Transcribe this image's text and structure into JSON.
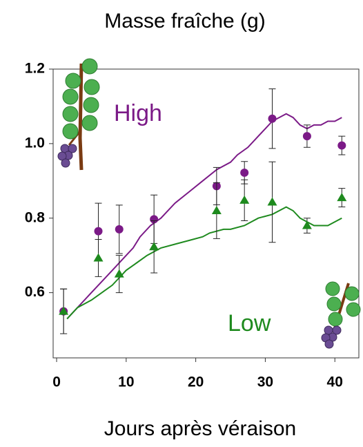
{
  "chart_data": {
    "type": "line",
    "title": "Masse fraîche (g)",
    "x_label": "Jours après véraison",
    "xlim": [
      -0.5,
      43.45
    ],
    "xticks": [
      0,
      10,
      20,
      30,
      40
    ],
    "ylim": [
      0.425,
      1.2
    ],
    "yticks": [
      0.6,
      0.8,
      {
        "value": 1,
        "label": "1.0"
      },
      1.2
    ],
    "series": [
      {
        "name": "High",
        "color": "#7b1a87",
        "marker": "circle",
        "x": [
          1,
          6,
          9,
          14,
          23,
          27,
          31,
          36,
          41
        ],
        "values": [
          0.55,
          0.765,
          0.77,
          0.797,
          0.886,
          0.922,
          1.067,
          1.02,
          0.995
        ],
        "errors": [
          0.06,
          0.075,
          0.065,
          0.065,
          0.05,
          0.03,
          0.08,
          0.03,
          0.025
        ],
        "model": {
          "x": [
            1.5,
            3,
            5,
            6.5,
            8,
            9.5,
            11,
            12,
            13.5,
            15,
            17,
            19,
            21,
            23,
            25,
            26,
            27.5,
            29,
            30,
            31,
            32,
            33,
            34,
            35,
            36,
            37,
            38,
            39,
            40,
            41
          ],
          "values": [
            0.53,
            0.56,
            0.6,
            0.63,
            0.66,
            0.69,
            0.72,
            0.75,
            0.78,
            0.8,
            0.84,
            0.87,
            0.9,
            0.93,
            0.95,
            0.97,
            0.99,
            1.02,
            1.04,
            1.06,
            1.07,
            1.08,
            1.07,
            1.05,
            1.04,
            1.05,
            1.05,
            1.06,
            1.06,
            1.07
          ]
        }
      },
      {
        "name": "Low",
        "color": "#1e8a1e",
        "marker": "triangle",
        "x": [
          1,
          6,
          9,
          14,
          23,
          27,
          31,
          36,
          41
        ],
        "values": [
          0.55,
          0.693,
          0.65,
          0.723,
          0.82,
          0.848,
          0.843,
          0.78,
          0.855
        ],
        "errors": [
          0.06,
          0.05,
          0.05,
          0.07,
          0.075,
          0.055,
          0.108,
          0.02,
          0.025
        ],
        "model": {
          "x": [
            1.5,
            3,
            5,
            6.5,
            8,
            9,
            10,
            11.5,
            13,
            15,
            17,
            19,
            21,
            22,
            24,
            25,
            27,
            29,
            31,
            33,
            34,
            35,
            36,
            37,
            38,
            39,
            40,
            41
          ],
          "values": [
            0.53,
            0.56,
            0.58,
            0.6,
            0.62,
            0.64,
            0.66,
            0.68,
            0.7,
            0.72,
            0.73,
            0.74,
            0.75,
            0.76,
            0.77,
            0.77,
            0.78,
            0.8,
            0.81,
            0.83,
            0.82,
            0.8,
            0.79,
            0.78,
            0.78,
            0.78,
            0.79,
            0.8
          ]
        }
      }
    ]
  }
}
